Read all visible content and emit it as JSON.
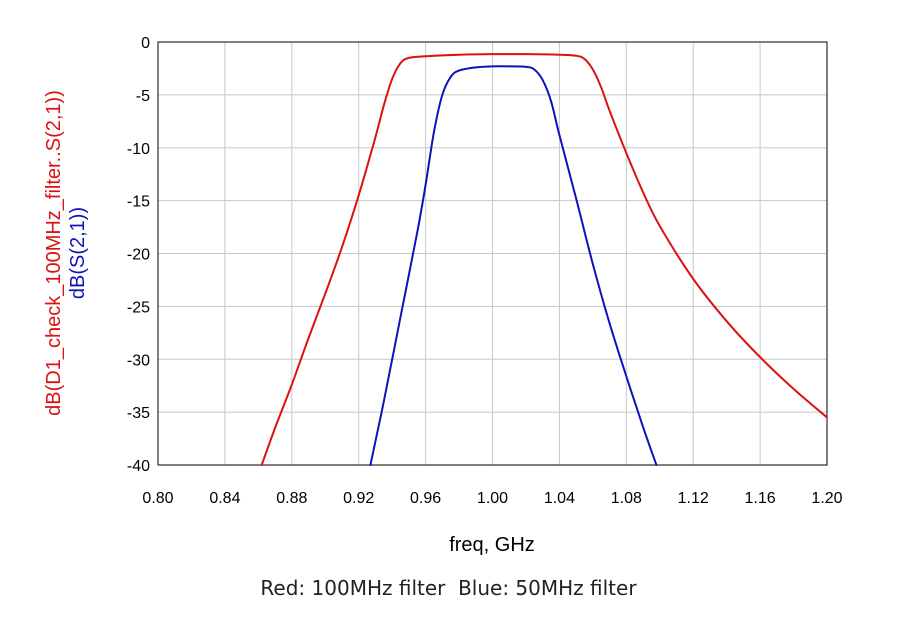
{
  "caption": "Red: 100MHz filter  Blue: 50MHz filter",
  "chart_data": {
    "type": "line",
    "xlabel": "freq, GHz",
    "xlim": [
      0.8,
      1.2
    ],
    "ylim": [
      -40,
      0
    ],
    "x_ticks": [
      0.8,
      0.84,
      0.88,
      0.92,
      0.96,
      1.0,
      1.04,
      1.08,
      1.12,
      1.16,
      1.2
    ],
    "x_tick_labels": [
      "0.80",
      "0.84",
      "0.88",
      "0.92",
      "0.96",
      "1.00",
      "1.04",
      "1.08",
      "1.12",
      "1.16",
      "1.20"
    ],
    "y_ticks": [
      0,
      -5,
      -10,
      -15,
      -20,
      -25,
      -30,
      -35,
      -40
    ],
    "y_tick_labels": [
      "0",
      "-5",
      "-10",
      "-15",
      "-20",
      "-25",
      "-30",
      "-35",
      "-40"
    ],
    "grid": true,
    "series": [
      {
        "name": "dB(D1_check_100MHz_filter..S(2,1))",
        "color": "#dd1111",
        "x": [
          0.862,
          0.87,
          0.88,
          0.89,
          0.9,
          0.91,
          0.92,
          0.93,
          0.935,
          0.94,
          0.945,
          0.95,
          0.96,
          0.98,
          1.0,
          1.02,
          1.04,
          1.05,
          1.055,
          1.06,
          1.065,
          1.07,
          1.08,
          1.09,
          1.1,
          1.12,
          1.14,
          1.16,
          1.18,
          1.2
        ],
        "y": [
          -40.0,
          -36.5,
          -32.4,
          -28.0,
          -23.8,
          -19.4,
          -14.5,
          -9.0,
          -6.0,
          -3.5,
          -2.0,
          -1.5,
          -1.35,
          -1.2,
          -1.15,
          -1.15,
          -1.2,
          -1.3,
          -1.6,
          -2.6,
          -4.3,
          -6.5,
          -10.5,
          -14.2,
          -17.4,
          -22.4,
          -26.4,
          -29.8,
          -32.8,
          -35.5
        ]
      },
      {
        "name": "dB(S(2,1))",
        "color": "#1111bb",
        "x": [
          0.927,
          0.935,
          0.945,
          0.955,
          0.96,
          0.965,
          0.97,
          0.975,
          0.98,
          0.99,
          1.0,
          1.01,
          1.02,
          1.025,
          1.03,
          1.035,
          1.04,
          1.05,
          1.06,
          1.07,
          1.08,
          1.09,
          1.098
        ],
        "y": [
          -40.0,
          -34.0,
          -26.0,
          -18.0,
          -13.5,
          -8.5,
          -5.0,
          -3.3,
          -2.7,
          -2.4,
          -2.3,
          -2.3,
          -2.35,
          -2.6,
          -3.6,
          -5.6,
          -8.8,
          -14.8,
          -21.0,
          -26.6,
          -31.6,
          -36.4,
          -40.0
        ]
      }
    ]
  }
}
